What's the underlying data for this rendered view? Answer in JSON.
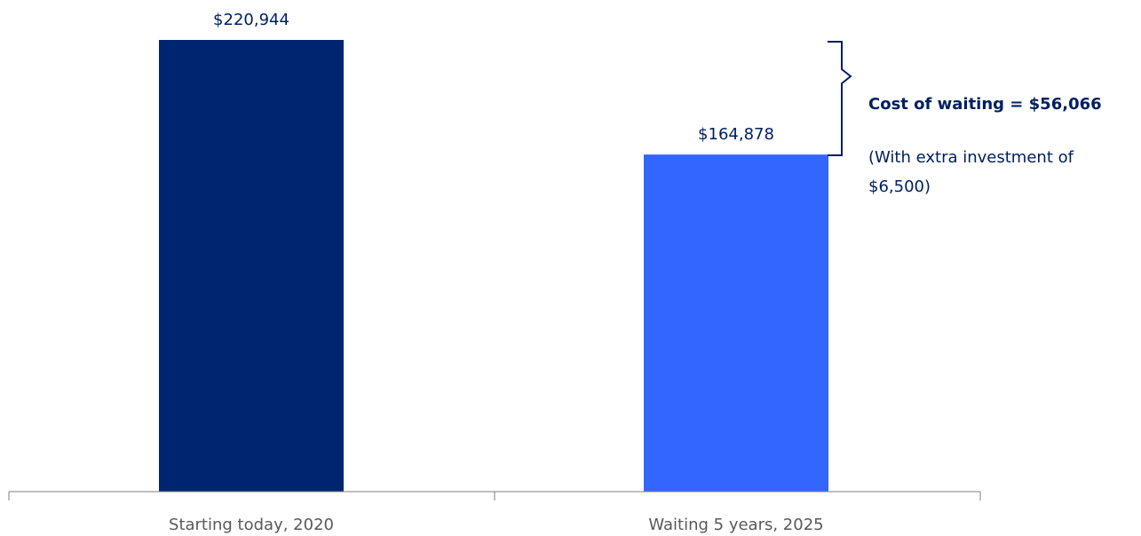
{
  "chart_data": {
    "type": "bar",
    "categories": [
      "Starting today, 2020",
      "Waiting 5 years, 2025"
    ],
    "values": [
      220944,
      164878
    ],
    "value_labels": [
      "$220,944",
      "$164,878"
    ],
    "ylim": [
      0,
      220944
    ],
    "grid": false,
    "colors": [
      "#002570",
      "#3366FF"
    ],
    "annotation": {
      "title": "Cost of waiting = $56,066",
      "note_lines": [
        "(With extra investment of",
        "$6,500)"
      ],
      "bracket_color": "#002060"
    }
  }
}
